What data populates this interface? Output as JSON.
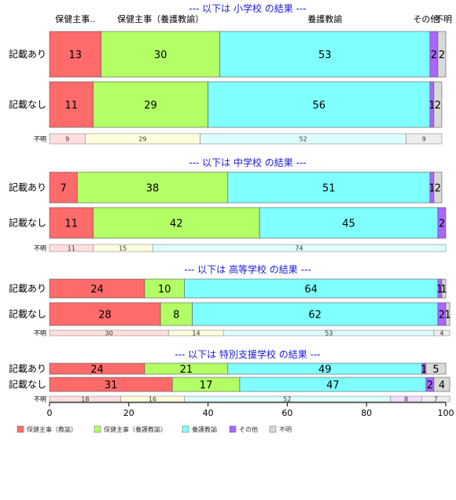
{
  "chart_data": {
    "type": "bar",
    "orientation": "horizontal",
    "stacked": true,
    "xlim": [
      0,
      100
    ],
    "x_ticks": [
      "0",
      "20",
      "40",
      "60",
      "80",
      "100"
    ],
    "categories": [
      "保健主事（教諭）",
      "保健主事（養護教諭）",
      "養護教諭",
      "その他",
      "不明"
    ],
    "colors": [
      "#ff6b6b",
      "#b3ff66",
      "#80ffff",
      "#aa66ff",
      "#d9d9d9"
    ],
    "light_colors": [
      "#ffdede",
      "#ffffdd",
      "#ddffff",
      "#f2ddff",
      "#eeeeee"
    ],
    "column_headers": [
      "保健主事..",
      "保健主事（養護教諭）",
      "養護教諭",
      "その他",
      "不明"
    ],
    "panels": [
      {
        "title": "--- 以下は 小学校 の結果 ---",
        "rows": [
          {
            "label": "記載あり",
            "values": [
              13,
              30,
              53,
              2,
              2
            ]
          },
          {
            "label": "記載なし",
            "values": [
              11,
              29,
              56,
              1,
              2
            ]
          }
        ],
        "unknown_row": {
          "label": "不明",
          "values": [
            9,
            29,
            52,
            0,
            9
          ]
        }
      },
      {
        "title": "--- 以下は 中学校 の結果 ---",
        "rows": [
          {
            "label": "記載あり",
            "values": [
              7,
              38,
              51,
              1,
              2
            ]
          },
          {
            "label": "記載なし",
            "values": [
              11,
              42,
              45,
              2,
              0
            ]
          }
        ],
        "unknown_row": {
          "label": "不明",
          "values": [
            11,
            15,
            74,
            0,
            0
          ]
        }
      },
      {
        "title": "--- 以下は 高等学校 の結果 ---",
        "rows": [
          {
            "label": "記載あり",
            "values": [
              24,
              10,
              64,
              1,
              1
            ]
          },
          {
            "label": "記載なし",
            "values": [
              28,
              8,
              62,
              2,
              1
            ]
          }
        ],
        "unknown_row": {
          "label": "不明",
          "values": [
            30,
            14,
            53,
            0,
            4
          ]
        }
      },
      {
        "title": "--- 以下は 特別支援学校 の結果 ---",
        "rows": [
          {
            "label": "記載あり",
            "values": [
              24,
              21,
              49,
              1,
              5
            ]
          },
          {
            "label": "記載なし",
            "values": [
              31,
              17,
              47,
              2,
              4
            ]
          }
        ],
        "unknown_row": {
          "label": "不明",
          "values": [
            18,
            16,
            52,
            8,
            7
          ]
        }
      }
    ],
    "legend": {
      "position": "bottom-left",
      "entries": [
        "保健主事（教諭）",
        "保健主事（養護教諭）",
        "養護教諭",
        "その他",
        "不明"
      ]
    }
  }
}
